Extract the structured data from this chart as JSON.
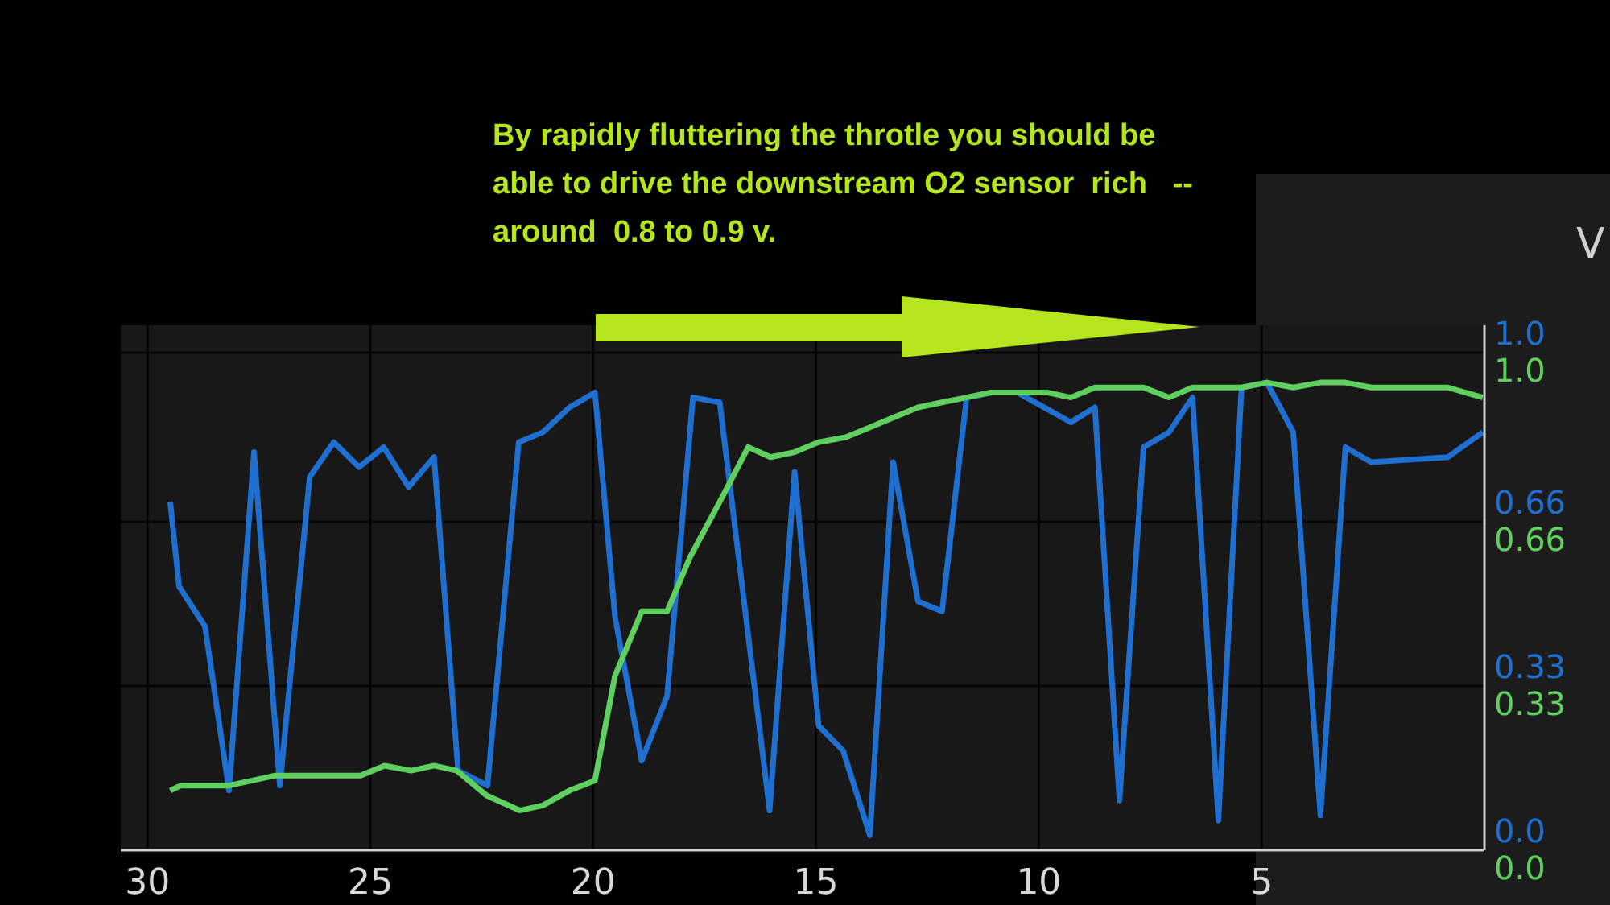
{
  "chart_data": {
    "type": "line",
    "annotations": [
      "By rapidly fluttering the throtle you should be\nable to drive the downstream O2 sensor  rich   --\naround  0.8 to 0.9 v.",
      "V"
    ],
    "xlim": [
      30.6,
      0
    ],
    "xticks": [
      30,
      25,
      20,
      15,
      10,
      5
    ],
    "ylim": [
      0,
      1.055
    ],
    "yticks": [
      {
        "value": 0,
        "label": "0.0"
      },
      0.33,
      0.66,
      {
        "value": 1,
        "label": "1.0"
      }
    ],
    "y2lim": [
      0,
      1.055
    ],
    "y2ticks": [
      {
        "value": 0,
        "label": "0.0"
      },
      0.33,
      0.66,
      {
        "value": 1,
        "label": "1.0"
      }
    ],
    "grid": true,
    "line_style": "solid",
    "marker": "none",
    "series": [
      {
        "color": "#1f6fd0",
        "axis": "y",
        "x": [
          29.49,
          29.29,
          28.71,
          28.17,
          27.61,
          27.03,
          26.36,
          25.82,
          25.25,
          24.7,
          24.14,
          23.57,
          23.03,
          22.37,
          21.67,
          21.13,
          20.53,
          19.96,
          19.51,
          18.91,
          18.34,
          17.76,
          17.16,
          16.04,
          15.48,
          14.94,
          14.39,
          13.79,
          13.27,
          12.71,
          12.17,
          11.62,
          11.02,
          10.48,
          9.28,
          8.74,
          8.19,
          7.65,
          7.08,
          6.55,
          5.97,
          5.45,
          4.88,
          4.29,
          3.68,
          3.12,
          2.54,
          0.82,
          0.04
        ],
        "values": [
          0.7,
          0.53,
          0.45,
          0.12,
          0.8,
          0.13,
          0.75,
          0.82,
          0.77,
          0.81,
          0.73,
          0.79,
          0.16,
          0.13,
          0.82,
          0.84,
          0.89,
          0.92,
          0.47,
          0.18,
          0.31,
          0.91,
          0.9,
          0.08,
          0.76,
          0.25,
          0.2,
          0.03,
          0.78,
          0.5,
          0.48,
          0.91,
          0.92,
          0.92,
          0.86,
          0.89,
          0.1,
          0.81,
          0.84,
          0.91,
          0.06,
          0.93,
          0.94,
          0.84,
          0.07,
          0.81,
          0.78,
          0.79,
          0.84
        ]
      },
      {
        "color": "#5fcf5f",
        "axis": "y2",
        "x": [
          29.49,
          29.25,
          28.17,
          27.15,
          25.82,
          25.22,
          24.68,
          24.08,
          23.57,
          23.06,
          22.39,
          21.65,
          21.13,
          20.53,
          19.96,
          19.51,
          18.91,
          18.34,
          17.82,
          17.16,
          16.52,
          16.02,
          15.48,
          14.94,
          14.33,
          13.79,
          13.25,
          12.71,
          12.17,
          11.62,
          11.08,
          10.48,
          9.82,
          9.28,
          8.74,
          8.19,
          7.65,
          7.08,
          6.55,
          5.45,
          4.88,
          4.29,
          3.68,
          3.12,
          2.54,
          0.82,
          0.04
        ],
        "values": [
          0.12,
          0.13,
          0.13,
          0.15,
          0.15,
          0.15,
          0.17,
          0.16,
          0.17,
          0.16,
          0.11,
          0.08,
          0.09,
          0.12,
          0.14,
          0.35,
          0.48,
          0.48,
          0.59,
          0.7,
          0.81,
          0.79,
          0.8,
          0.82,
          0.83,
          0.85,
          0.87,
          0.89,
          0.9,
          0.91,
          0.92,
          0.92,
          0.92,
          0.91,
          0.93,
          0.93,
          0.93,
          0.91,
          0.93,
          0.93,
          0.94,
          0.93,
          0.94,
          0.94,
          0.93,
          0.93,
          0.91
        ]
      }
    ]
  }
}
